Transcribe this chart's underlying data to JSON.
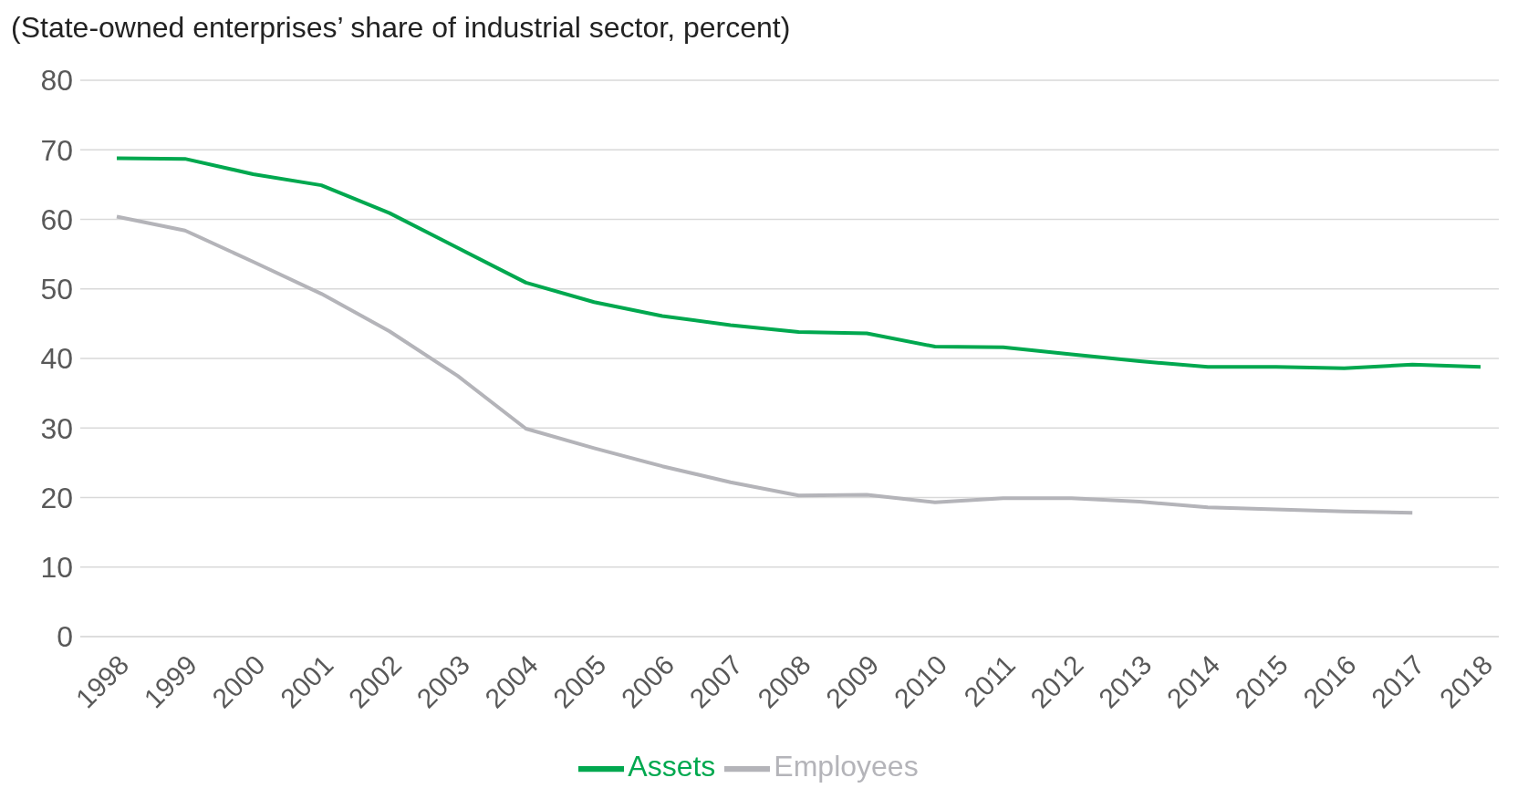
{
  "chart_data": {
    "type": "line",
    "title": "(State-owned enterprises’ share of industrial sector, percent)",
    "categories": [
      "1998",
      "1999",
      "2000",
      "2001",
      "2002",
      "2003",
      "2004",
      "2005",
      "2006",
      "2007",
      "2008",
      "2009",
      "2010",
      "2011",
      "2012",
      "2013",
      "2014",
      "2015",
      "2016",
      "2017",
      "2018"
    ],
    "series": [
      {
        "name": "Assets",
        "color": "#00a84f",
        "values": [
          68.8,
          68.7,
          66.5,
          64.9,
          60.9,
          55.9,
          50.9,
          48.1,
          46.1,
          44.8,
          43.8,
          43.6,
          41.7,
          41.6,
          40.6,
          39.6,
          38.8,
          38.8,
          38.6,
          39.1,
          38.8
        ]
      },
      {
        "name": "Employees",
        "color": "#b4b4b9",
        "values": [
          60.4,
          58.4,
          53.9,
          49.3,
          43.9,
          37.5,
          29.9,
          27.1,
          24.5,
          22.2,
          20.3,
          20.4,
          19.3,
          19.9,
          19.9,
          19.4,
          18.6,
          18.3,
          18.0,
          17.8,
          null
        ]
      }
    ],
    "ylim": [
      0,
      80
    ],
    "yticks": [
      0,
      10,
      20,
      30,
      40,
      50,
      60,
      70,
      80
    ],
    "grid": "y",
    "legend": "bottom",
    "marker": "none",
    "line_style": "solid"
  }
}
